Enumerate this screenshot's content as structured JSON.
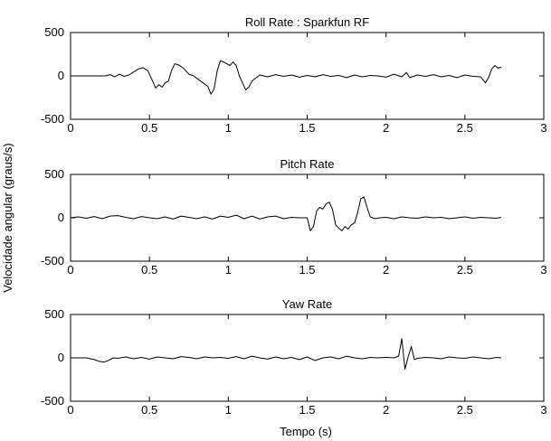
{
  "figure": {
    "ylabel": "Velocidade angular (graus/s)",
    "xlabel": "Tempo (s)"
  },
  "chart_data": [
    {
      "type": "line",
      "title": "Roll Rate : Sparkfun RF",
      "xlim": [
        0,
        3
      ],
      "ylim": [
        -500,
        500
      ],
      "xticks": [
        0,
        0.5,
        1,
        1.5,
        2,
        2.5,
        3
      ],
      "xticklabels": [
        "0",
        "0.5",
        "1",
        "1.5",
        "2",
        "2.5",
        "3"
      ],
      "yticks": [
        -500,
        0,
        500
      ],
      "yticklabels": [
        "-500",
        "0",
        "500"
      ],
      "series": [
        {
          "color": "#000000",
          "x": [
            0,
            0.22,
            0.25,
            0.28,
            0.31,
            0.34,
            0.37,
            0.4,
            0.43,
            0.46,
            0.49,
            0.52,
            0.54,
            0.56,
            0.58,
            0.6,
            0.62,
            0.64,
            0.66,
            0.68,
            0.7,
            0.72,
            0.75,
            0.78,
            0.81,
            0.84,
            0.87,
            0.89,
            0.91,
            0.93,
            0.95,
            0.97,
            0.99,
            1.01,
            1.03,
            1.05,
            1.07,
            1.09,
            1.11,
            1.13,
            1.15,
            1.17,
            1.2,
            1.25,
            1.3,
            1.35,
            1.4,
            1.45,
            1.5,
            1.55,
            1.6,
            1.65,
            1.7,
            1.75,
            1.8,
            1.85,
            1.9,
            1.95,
            2.0,
            2.05,
            2.1,
            2.13,
            2.15,
            2.2,
            2.25,
            2.3,
            2.35,
            2.4,
            2.45,
            2.5,
            2.55,
            2.6,
            2.63,
            2.65,
            2.67,
            2.69,
            2.71,
            2.73
          ],
          "y": [
            0,
            0,
            15,
            -10,
            20,
            -5,
            10,
            45,
            80,
            95,
            60,
            -60,
            -140,
            -100,
            -130,
            -80,
            -60,
            60,
            140,
            130,
            110,
            80,
            20,
            0,
            -40,
            -80,
            -120,
            -210,
            -150,
            60,
            175,
            160,
            140,
            120,
            160,
            120,
            0,
            -80,
            -160,
            -130,
            -60,
            -30,
            10,
            -10,
            15,
            -5,
            10,
            -15,
            5,
            -10,
            15,
            -5,
            5,
            -20,
            10,
            -10,
            5,
            0,
            -15,
            20,
            -10,
            40,
            -20,
            10,
            -5,
            15,
            -10,
            5,
            -20,
            10,
            -5,
            -10,
            -80,
            -20,
            80,
            120,
            90,
            100
          ]
        }
      ]
    },
    {
      "type": "line",
      "title": "Pitch Rate",
      "xlim": [
        0,
        3
      ],
      "ylim": [
        -500,
        500
      ],
      "xticks": [
        0,
        0.5,
        1,
        1.5,
        2,
        2.5,
        3
      ],
      "xticklabels": [
        "0",
        "0.5",
        "1",
        "1.5",
        "2",
        "2.5",
        "3"
      ],
      "yticks": [
        -500,
        0,
        500
      ],
      "yticklabels": [
        "-500",
        "0",
        "500"
      ],
      "series": [
        {
          "color": "#000000",
          "x": [
            0,
            0.05,
            0.1,
            0.15,
            0.2,
            0.25,
            0.3,
            0.35,
            0.4,
            0.45,
            0.5,
            0.55,
            0.6,
            0.65,
            0.7,
            0.75,
            0.8,
            0.85,
            0.9,
            0.95,
            1.0,
            1.05,
            1.1,
            1.15,
            1.2,
            1.25,
            1.3,
            1.35,
            1.4,
            1.45,
            1.5,
            1.52,
            1.54,
            1.56,
            1.58,
            1.6,
            1.62,
            1.64,
            1.66,
            1.68,
            1.7,
            1.72,
            1.74,
            1.76,
            1.78,
            1.8,
            1.82,
            1.84,
            1.86,
            1.88,
            1.9,
            1.93,
            1.96,
            2.0,
            2.05,
            2.1,
            2.15,
            2.2,
            2.25,
            2.3,
            2.35,
            2.4,
            2.45,
            2.5,
            2.55,
            2.6,
            2.65,
            2.7,
            2.73
          ],
          "y": [
            0,
            10,
            -5,
            15,
            -10,
            20,
            25,
            5,
            -10,
            15,
            0,
            -10,
            10,
            -15,
            20,
            5,
            -10,
            10,
            -15,
            20,
            5,
            30,
            -10,
            20,
            -15,
            10,
            20,
            -10,
            5,
            0,
            0,
            -150,
            -100,
            80,
            120,
            100,
            160,
            180,
            100,
            -80,
            -120,
            -150,
            -100,
            -130,
            -80,
            -60,
            60,
            220,
            240,
            120,
            10,
            -10,
            0,
            5,
            -10,
            10,
            0,
            -5,
            10,
            0,
            5,
            -10,
            0,
            10,
            -5,
            5,
            0,
            -5,
            5
          ]
        }
      ]
    },
    {
      "type": "line",
      "title": "Yaw Rate",
      "xlim": [
        0,
        3
      ],
      "ylim": [
        -500,
        500
      ],
      "xticks": [
        0,
        0.5,
        1,
        1.5,
        2,
        2.5,
        3
      ],
      "xticklabels": [
        "0",
        "0.5",
        "1",
        "1.5",
        "2",
        "2.5",
        "3"
      ],
      "yticks": [
        -500,
        0,
        500
      ],
      "yticklabels": [
        "-500",
        "0",
        "500"
      ],
      "series": [
        {
          "color": "#000000",
          "x": [
            0,
            0.1,
            0.15,
            0.18,
            0.21,
            0.24,
            0.27,
            0.3,
            0.35,
            0.4,
            0.45,
            0.5,
            0.55,
            0.6,
            0.65,
            0.7,
            0.75,
            0.8,
            0.85,
            0.9,
            0.95,
            1.0,
            1.05,
            1.1,
            1.15,
            1.2,
            1.25,
            1.3,
            1.35,
            1.4,
            1.45,
            1.5,
            1.55,
            1.6,
            1.65,
            1.7,
            1.75,
            1.8,
            1.85,
            1.9,
            1.95,
            2.0,
            2.05,
            2.08,
            2.1,
            2.12,
            2.14,
            2.16,
            2.18,
            2.2,
            2.25,
            2.3,
            2.35,
            2.4,
            2.45,
            2.5,
            2.55,
            2.6,
            2.65,
            2.7,
            2.73
          ],
          "y": [
            0,
            0,
            -20,
            -40,
            -50,
            -30,
            0,
            -5,
            10,
            -10,
            5,
            -15,
            10,
            0,
            -10,
            15,
            5,
            -10,
            10,
            0,
            5,
            -5,
            15,
            -10,
            20,
            0,
            -15,
            10,
            -10,
            5,
            -20,
            10,
            -30,
            0,
            10,
            -10,
            20,
            0,
            -10,
            5,
            0,
            5,
            0,
            20,
            220,
            -130,
            10,
            130,
            -20,
            -5,
            5,
            0,
            -10,
            10,
            0,
            -5,
            10,
            0,
            -10,
            5,
            0
          ]
        }
      ]
    }
  ]
}
